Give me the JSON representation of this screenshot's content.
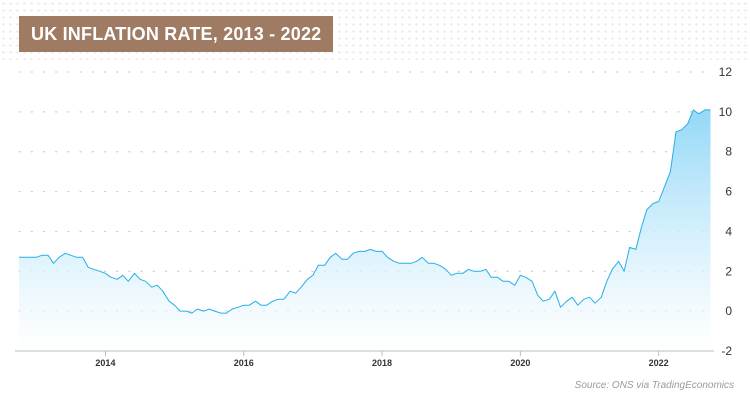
{
  "header": {
    "title": "UK INFLATION RATE, 2013 - 2022"
  },
  "footer": {
    "source": "Source: ONS via TradingEconomics"
  },
  "colors": {
    "banner": "#a07b63",
    "line": "#29aee6",
    "area_top": "#8ed6f7",
    "area_bottom": "#ffffff"
  },
  "chart_data": {
    "type": "area",
    "title": "UK INFLATION RATE, 2013 - 2022",
    "xlabel": "",
    "ylabel": "",
    "xlim": [
      2012.75,
      2022.8
    ],
    "ylim": [
      -2,
      12
    ],
    "y_axis_position": "right",
    "grid": "horizontal dotted",
    "y_ticks": [
      "12",
      "10",
      "8",
      "6",
      "4",
      "2",
      "0",
      "-2"
    ],
    "x_ticks": [
      "2014",
      "2016",
      "2018",
      "2020",
      "2022"
    ],
    "series": [
      {
        "x": [
          2012.75,
          2013.0,
          2013.08,
          2013.17,
          2013.25,
          2013.33,
          2013.42,
          2013.5,
          2013.58,
          2013.67,
          2013.75,
          2013.83,
          2013.92,
          2014.0,
          2014.08,
          2014.17,
          2014.25,
          2014.33,
          2014.42,
          2014.5,
          2014.58,
          2014.67,
          2014.75,
          2014.83,
          2014.92,
          2015.0,
          2015.08,
          2015.17,
          2015.25,
          2015.33,
          2015.42,
          2015.5,
          2015.58,
          2015.67,
          2015.75,
          2015.83,
          2015.92,
          2016.0,
          2016.08,
          2016.17,
          2016.25,
          2016.33,
          2016.42,
          2016.5,
          2016.58,
          2016.67,
          2016.75,
          2016.83,
          2016.92,
          2017.0,
          2017.08,
          2017.17,
          2017.25,
          2017.33,
          2017.42,
          2017.5,
          2017.58,
          2017.67,
          2017.75,
          2017.83,
          2017.92,
          2018.0,
          2018.08,
          2018.17,
          2018.25,
          2018.33,
          2018.42,
          2018.5,
          2018.58,
          2018.67,
          2018.75,
          2018.83,
          2018.92,
          2019.0,
          2019.08,
          2019.17,
          2019.25,
          2019.33,
          2019.42,
          2019.5,
          2019.58,
          2019.67,
          2019.75,
          2019.83,
          2019.92,
          2020.0,
          2020.08,
          2020.17,
          2020.25,
          2020.33,
          2020.42,
          2020.5,
          2020.58,
          2020.67,
          2020.75,
          2020.83,
          2020.92,
          2021.0,
          2021.08,
          2021.17,
          2021.25,
          2021.33,
          2021.42,
          2021.5,
          2021.58,
          2021.67,
          2021.75,
          2021.83,
          2021.92,
          2022.0,
          2022.08,
          2022.17,
          2022.25,
          2022.33,
          2022.42,
          2022.5,
          2022.58,
          2022.67,
          2022.75
        ],
        "values": [
          2.7,
          2.7,
          2.8,
          2.8,
          2.4,
          2.7,
          2.9,
          2.8,
          2.7,
          2.7,
          2.2,
          2.1,
          2.0,
          1.9,
          1.7,
          1.6,
          1.8,
          1.5,
          1.9,
          1.6,
          1.5,
          1.2,
          1.3,
          1.0,
          0.5,
          0.3,
          0.0,
          0.0,
          -0.1,
          0.1,
          0.0,
          0.1,
          0.0,
          -0.1,
          -0.1,
          0.1,
          0.2,
          0.3,
          0.3,
          0.5,
          0.3,
          0.3,
          0.5,
          0.6,
          0.6,
          1.0,
          0.9,
          1.2,
          1.6,
          1.8,
          2.3,
          2.3,
          2.7,
          2.9,
          2.6,
          2.6,
          2.9,
          3.0,
          3.0,
          3.1,
          3.0,
          3.0,
          2.7,
          2.5,
          2.4,
          2.4,
          2.4,
          2.5,
          2.7,
          2.4,
          2.4,
          2.3,
          2.1,
          1.8,
          1.9,
          1.9,
          2.1,
          2.0,
          2.0,
          2.1,
          1.7,
          1.7,
          1.5,
          1.5,
          1.3,
          1.8,
          1.7,
          1.5,
          0.8,
          0.5,
          0.6,
          1.0,
          0.2,
          0.5,
          0.7,
          0.3,
          0.6,
          0.7,
          0.4,
          0.7,
          1.5,
          2.1,
          2.5,
          2.0,
          3.2,
          3.1,
          4.2,
          5.1,
          5.4,
          5.5,
          6.2,
          7.0,
          9.0,
          9.1,
          9.4,
          10.1,
          9.9,
          10.1,
          10.1
        ]
      }
    ]
  }
}
